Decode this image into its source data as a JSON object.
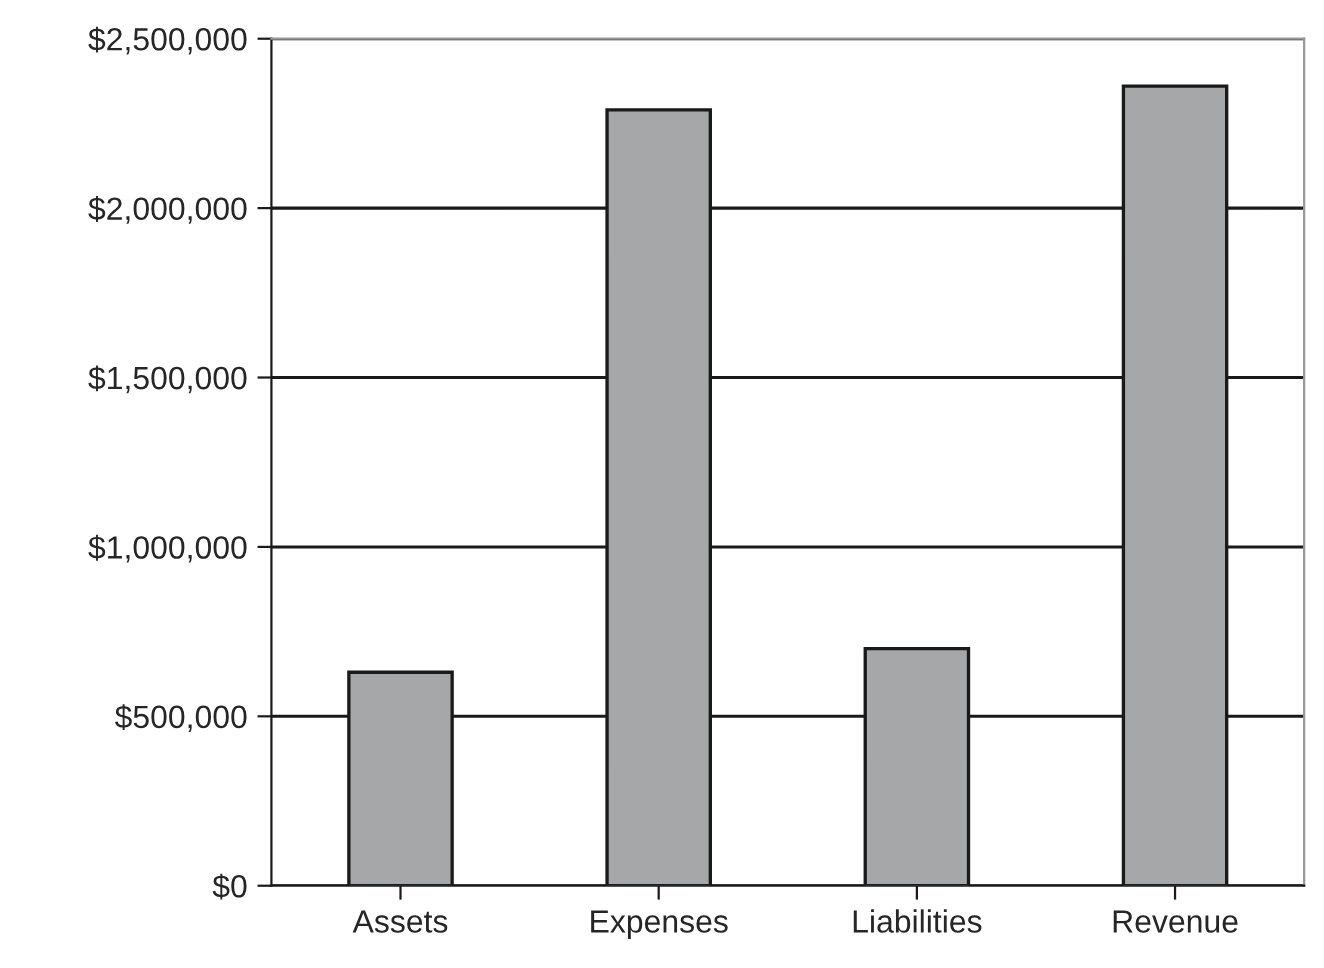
{
  "chart_data": {
    "type": "bar",
    "categories": [
      "Assets",
      "Expenses",
      "Liabilities",
      "Revenue"
    ],
    "values": [
      630000,
      2290000,
      700000,
      2360000
    ],
    "color": "#a6a7a9",
    "ylim": [
      0,
      2500000
    ],
    "yticks": [
      {
        "value": 0,
        "label": "$0"
      },
      {
        "value": 500000,
        "label": "$500,000"
      },
      {
        "value": 1000000,
        "label": "$1,000,000"
      },
      {
        "value": 1500000,
        "label": "$1,500,000"
      },
      {
        "value": 2000000,
        "label": "$2,000,000"
      },
      {
        "value": 2500000,
        "label": "$2,500,000"
      }
    ],
    "grid": "y",
    "legend": false
  }
}
